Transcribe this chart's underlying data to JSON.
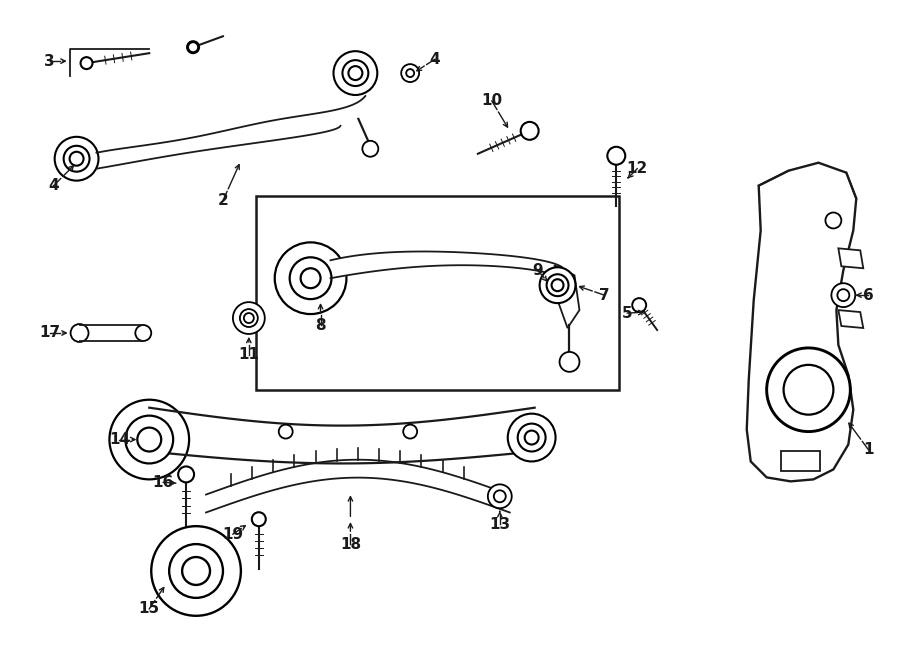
{
  "bg_color": "#ffffff",
  "line_color": "#1a1a1a",
  "fig_width": 9.0,
  "fig_height": 6.62,
  "dpi": 100,
  "lw": 1.3
}
